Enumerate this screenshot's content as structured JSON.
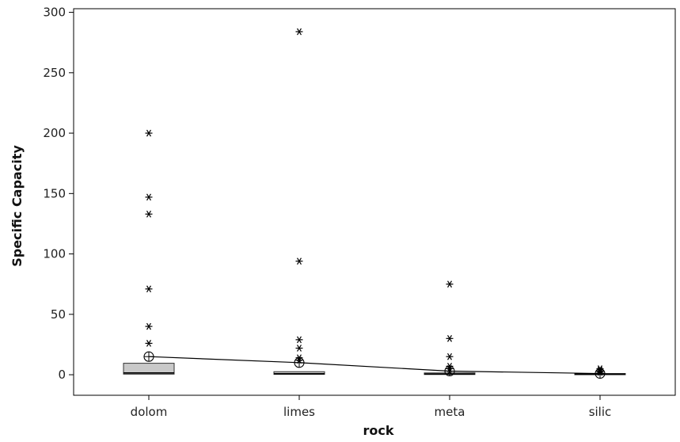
{
  "chart_data": {
    "type": "box",
    "title": "",
    "xlabel": "rock",
    "ylabel": "Specific Capacity",
    "categories": [
      "dolom",
      "limes",
      "meta",
      "silic"
    ],
    "ylim": [
      -17,
      303
    ],
    "yticks": [
      0,
      50,
      100,
      150,
      200,
      250,
      300
    ],
    "grid": false,
    "legend": "none",
    "boxes": [
      {
        "category": "dolom",
        "q1": 0.5,
        "median": 1.5,
        "q3": 9.5,
        "mean": 15,
        "outliers": [
          26,
          40,
          71,
          133,
          147,
          200
        ]
      },
      {
        "category": "limes",
        "q1": 0.3,
        "median": 0.8,
        "q3": 2.5,
        "mean": 10,
        "outliers": [
          12,
          14,
          22,
          29,
          94,
          284
        ]
      },
      {
        "category": "meta",
        "q1": 0.2,
        "median": 0.6,
        "q3": 1.5,
        "mean": 3,
        "outliers": [
          3,
          5,
          7,
          15,
          30,
          75
        ]
      },
      {
        "category": "silic",
        "q1": 0.2,
        "median": 0.5,
        "q3": 1.0,
        "mean": 1,
        "outliers": [
          2,
          3,
          4,
          5
        ]
      }
    ],
    "mean_connect_line": true,
    "colors": {
      "box_fill": "#c9c9c9",
      "box_stroke": "#333333",
      "line": "#000000",
      "marker": "#000000"
    }
  }
}
